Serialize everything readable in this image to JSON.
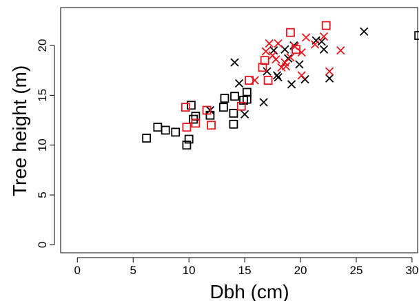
{
  "chart_data": {
    "type": "scatter",
    "title": "",
    "xlabel": "Dbh (cm)",
    "ylabel": "Tree height (m)",
    "xlim": [
      -1.5,
      30.5
    ],
    "ylim": [
      -0.8,
      23.8
    ],
    "x_ticks": [
      0,
      5,
      10,
      15,
      20,
      25,
      30
    ],
    "y_ticks": [
      0,
      5,
      10,
      15,
      20
    ],
    "grid": false,
    "legend": "none",
    "series": [
      {
        "marker": "square",
        "color": "#000000",
        "points": [
          [
            6.2,
            10.7
          ],
          [
            7.2,
            11.8
          ],
          [
            7.9,
            11.5
          ],
          [
            8.8,
            11.3
          ],
          [
            9.8,
            10.0
          ],
          [
            10.0,
            10.6
          ],
          [
            10.2,
            14.0
          ],
          [
            10.4,
            12.6
          ],
          [
            10.6,
            12.9
          ],
          [
            11.9,
            13.0
          ],
          [
            13.1,
            13.8
          ],
          [
            13.2,
            14.7
          ],
          [
            14.0,
            13.2
          ],
          [
            14.1,
            14.9
          ],
          [
            14.0,
            12.1
          ],
          [
            14.9,
            14.5
          ],
          [
            15.2,
            14.6
          ],
          [
            15.2,
            15.3
          ],
          [
            30.6,
            21.0
          ]
        ]
      },
      {
        "marker": "x",
        "color": "#000000",
        "points": [
          [
            11.9,
            13.5
          ],
          [
            14.1,
            18.3
          ],
          [
            14.5,
            16.2
          ],
          [
            15.0,
            13.1
          ],
          [
            16.7,
            14.3
          ],
          [
            17.0,
            17.4
          ],
          [
            17.6,
            19.5
          ],
          [
            17.9,
            17.0
          ],
          [
            18.0,
            16.8
          ],
          [
            18.6,
            19.6
          ],
          [
            18.9,
            18.7
          ],
          [
            19.2,
            16.1
          ],
          [
            19.4,
            20.0
          ],
          [
            19.9,
            18.1
          ],
          [
            20.4,
            16.6
          ],
          [
            21.4,
            20.5
          ],
          [
            21.9,
            20.4
          ],
          [
            22.1,
            19.6
          ],
          [
            22.6,
            16.7
          ],
          [
            25.7,
            21.4
          ]
        ]
      },
      {
        "marker": "square",
        "color": "#e8141e",
        "points": [
          [
            9.7,
            13.8
          ],
          [
            9.8,
            11.8
          ],
          [
            10.6,
            12.2
          ],
          [
            11.6,
            13.5
          ],
          [
            12.0,
            12.0
          ],
          [
            14.7,
            13.9
          ],
          [
            15.4,
            16.5
          ],
          [
            16.6,
            17.8
          ],
          [
            16.8,
            18.5
          ],
          [
            17.1,
            16.5
          ],
          [
            19.1,
            21.3
          ],
          [
            19.6,
            19.6
          ],
          [
            22.3,
            22.0
          ]
        ]
      },
      {
        "marker": "x",
        "color": "#e8141e",
        "points": [
          [
            15.9,
            16.5
          ],
          [
            16.9,
            19.4
          ],
          [
            17.2,
            20.2
          ],
          [
            17.5,
            19.0
          ],
          [
            17.8,
            18.6
          ],
          [
            18.0,
            20.2
          ],
          [
            18.3,
            17.8
          ],
          [
            18.6,
            18.3
          ],
          [
            18.7,
            17.9
          ],
          [
            19.1,
            18.8
          ],
          [
            19.5,
            19.9
          ],
          [
            20.1,
            19.3
          ],
          [
            20.1,
            17.0
          ],
          [
            20.5,
            20.8
          ],
          [
            21.3,
            20.1
          ],
          [
            22.1,
            20.9
          ],
          [
            22.6,
            17.4
          ],
          [
            23.6,
            19.5
          ]
        ]
      }
    ]
  }
}
